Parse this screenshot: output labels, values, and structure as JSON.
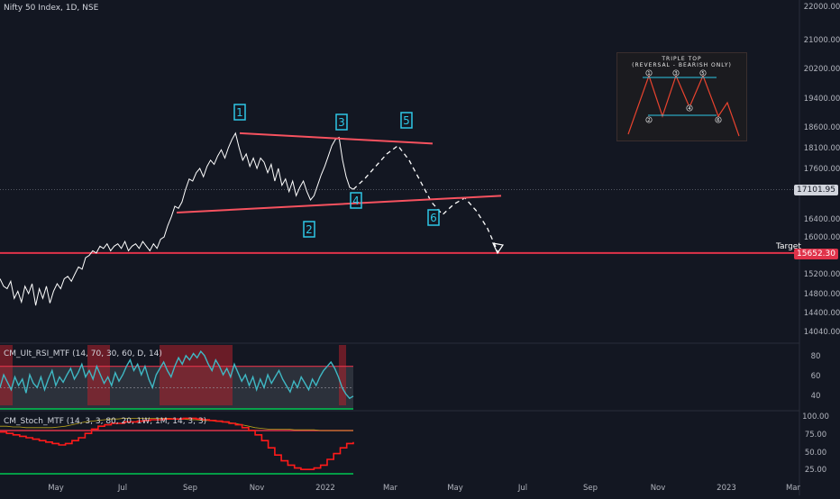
{
  "header": {
    "symbol_line": "Nifty 50 Index, 1D, NSE"
  },
  "colors": {
    "background": "#131722",
    "price_line": "#ffffff",
    "trendline": "#f7525f",
    "target_line": "#e0334a",
    "annotation_box": "#2ec7e6",
    "rsi_line": "#3fb8c4",
    "stoch_line": "#ff1a1a",
    "stoch_signal": "#b8a21c",
    "upper_band": "#e0334a",
    "lower_band": "#00c853"
  },
  "price_axis": {
    "ticks": [
      "22000.00",
      "21000.00",
      "20200.00",
      "19400.00",
      "18600.00",
      "18100.00",
      "17600.00",
      "16400.00",
      "16000.00",
      "15200.00",
      "14800.00",
      "14400.00",
      "14040.00"
    ],
    "current_price": "17101.95",
    "target_price": "15652.30",
    "target_label": "Target"
  },
  "time_axis": {
    "ticks": [
      "May",
      "Jul",
      "Sep",
      "Nov",
      "2022",
      "Mar",
      "May",
      "Jul",
      "Sep",
      "Nov",
      "2023",
      "Mar"
    ]
  },
  "wave_labels": [
    "1",
    "2",
    "3",
    "4",
    "5",
    "6"
  ],
  "inset": {
    "title_line1": "TRIPLE TOP",
    "title_line2": "(REVERSAL - BEARISH ONLY)",
    "points": [
      "1",
      "2",
      "3",
      "4",
      "5",
      "6"
    ]
  },
  "indicators": {
    "rsi": {
      "label": "CM_Ult_RSI_MTF (14, 70, 30, 60, D, 14)",
      "ticks": [
        "80",
        "60",
        "40"
      ]
    },
    "stoch": {
      "label": "CM_Stoch_MTF (14, 3, 3, 80, 20, 1W, 1M, 14, 3, 3)",
      "ticks": [
        "100.00",
        "75.00",
        "50.00",
        "25.00"
      ]
    }
  },
  "chart_data": {
    "type": "line",
    "series": [
      {
        "values": [
          15100,
          14950,
          14900,
          15050,
          14700,
          14850,
          14620,
          14950,
          14800,
          15000,
          14550,
          14900,
          14700,
          14950,
          14600,
          14850,
          15000,
          14900,
          15100,
          15150,
          15050,
          15200,
          15350,
          15300,
          15550,
          15600,
          15700,
          15650,
          15800,
          15750,
          15850,
          15700,
          15800,
          15850,
          15750,
          15900,
          15700,
          15800,
          15850,
          15750,
          15900,
          15800,
          15700,
          15850,
          15750,
          15950,
          16000,
          16250,
          16450,
          16700,
          16650,
          16800,
          17100,
          17350,
          17300,
          17500,
          17600,
          17400,
          17650,
          17800,
          17700,
          17900,
          18050,
          17850,
          18100,
          18300,
          18450,
          18100,
          17800,
          17950,
          17650,
          17850,
          17600,
          17850,
          17750,
          17500,
          17700,
          17300,
          17600,
          17200,
          17350,
          17050,
          17300,
          16950,
          17150,
          17300,
          17050,
          16850,
          16950,
          17200,
          17450,
          17650,
          17900,
          18150,
          18300,
          18350,
          17800,
          17400,
          17150,
          17101.95
        ],
        "forecast": [
          17101.95,
          17350,
          17650,
          17950,
          18150,
          17800,
          17300,
          16800,
          16500,
          16750,
          16900,
          16600,
          16200,
          15650
        ]
      }
    ],
    "triangle": {
      "upper_start": 18450,
      "upper_end": 18200,
      "lower_start": 16550,
      "lower_end": 16950
    },
    "target": 15652.3,
    "ylim": [
      14040,
      22000
    ],
    "rsi": {
      "values": [
        50,
        62,
        55,
        48,
        60,
        52,
        58,
        45,
        62,
        54,
        50,
        60,
        48,
        58,
        66,
        52,
        60,
        55,
        62,
        68,
        58,
        64,
        72,
        60,
        66,
        58,
        70,
        62,
        54,
        60,
        52,
        64,
        56,
        62,
        70,
        76,
        66,
        72,
        62,
        70,
        58,
        50,
        62,
        68,
        74,
        66,
        60,
        70,
        78,
        72,
        80,
        76,
        82,
        78,
        84,
        80,
        72,
        66,
        76,
        70,
        62,
        68,
        60,
        72,
        64,
        56,
        62,
        52,
        60,
        48,
        58,
        50,
        62,
        54,
        60,
        66,
        58,
        52,
        46,
        56,
        50,
        60,
        54,
        48,
        58,
        52,
        60,
        66,
        70,
        74,
        68,
        60,
        50,
        44,
        40,
        42
      ],
      "overbought": 70,
      "oversold": 30,
      "ylim": [
        30,
        90
      ]
    },
    "stoch": {
      "k": [
        78,
        76,
        74,
        72,
        70,
        68,
        66,
        64,
        62,
        60,
        62,
        66,
        70,
        76,
        82,
        86,
        88,
        90,
        90,
        92,
        92,
        93,
        94,
        95,
        95,
        96,
        96,
        96,
        97,
        97,
        96,
        95,
        94,
        93,
        92,
        90,
        88,
        84,
        80,
        74,
        66,
        56,
        46,
        38,
        32,
        28,
        26,
        26,
        28,
        32,
        40,
        48,
        56,
        62,
        64
      ],
      "signal": [
        86,
        86,
        85,
        85,
        84,
        84,
        84,
        84,
        84,
        85,
        86,
        88,
        90,
        92,
        93,
        94,
        95,
        96,
        96,
        97,
        97,
        97,
        97,
        97,
        97,
        97,
        97,
        96,
        96,
        95,
        95,
        94,
        94,
        93,
        92,
        91,
        90,
        88,
        86,
        84,
        83,
        82,
        82,
        82,
        82,
        81,
        81,
        81,
        81,
        80,
        80,
        80,
        80,
        80,
        80
      ],
      "upper": 80,
      "lower": 20,
      "ylim": [
        15,
        105
      ]
    }
  }
}
